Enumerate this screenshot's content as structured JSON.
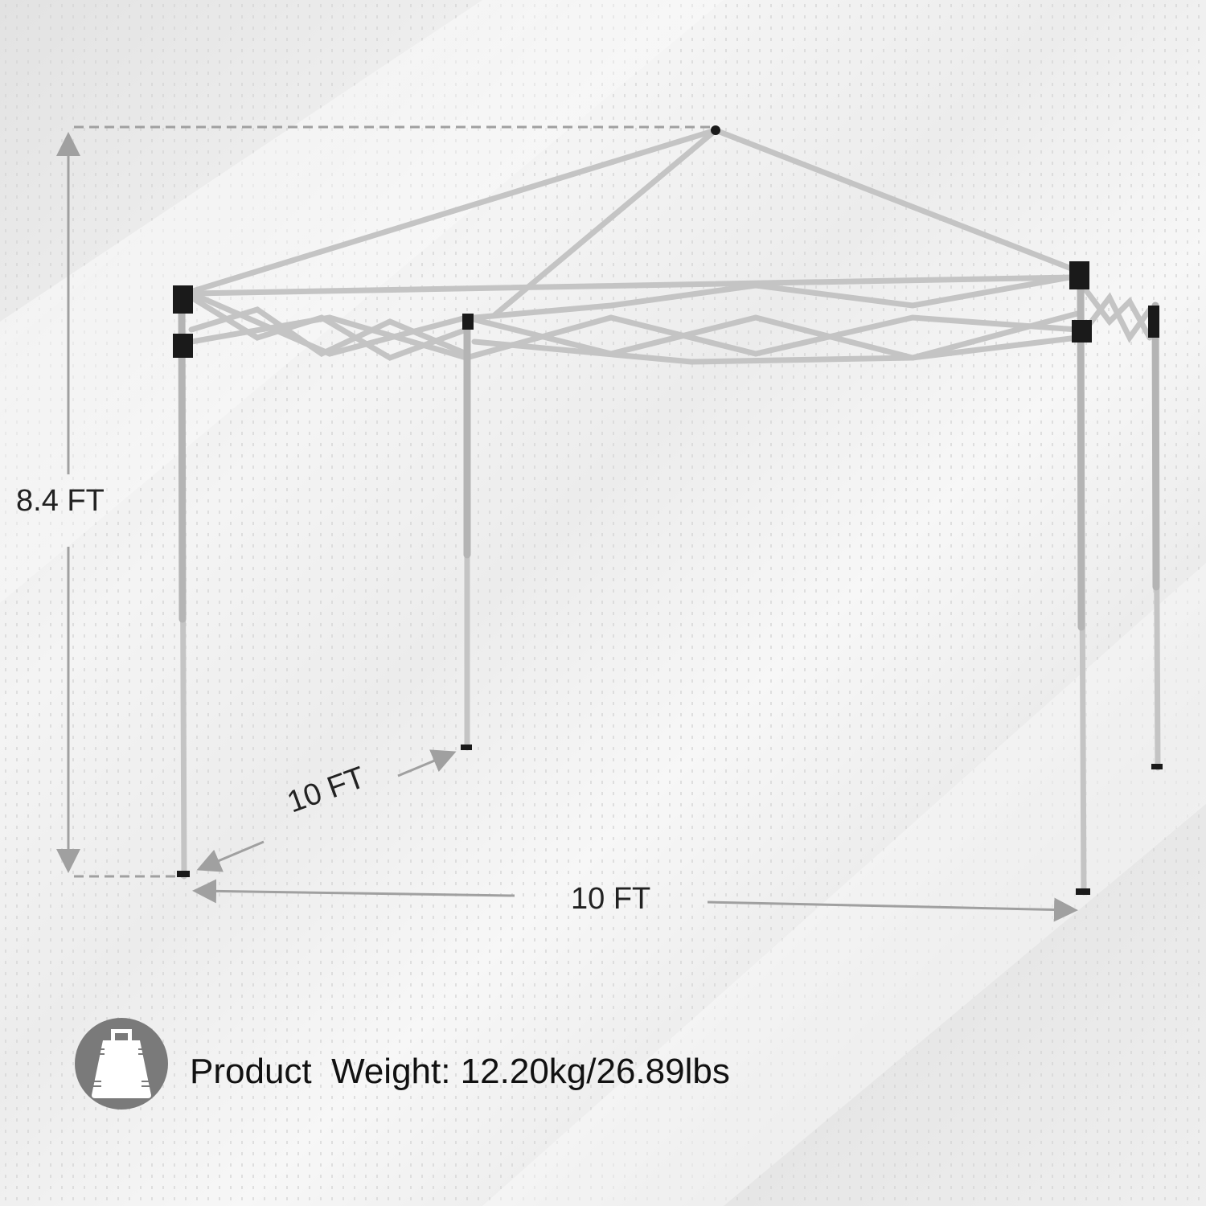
{
  "dimensions": {
    "height_label": "8.4 FT",
    "depth_label": "10 FT",
    "width_label": "10 FT"
  },
  "weight": {
    "icon": "weight-bag-icon",
    "text": "Product  Weight: 12.20kg/26.89lbs"
  },
  "colors": {
    "frame": "#c8c8c8",
    "joints": "#1a1a1a",
    "arrows": "#a0a0a0",
    "icon_circle": "#7a7a7a"
  }
}
